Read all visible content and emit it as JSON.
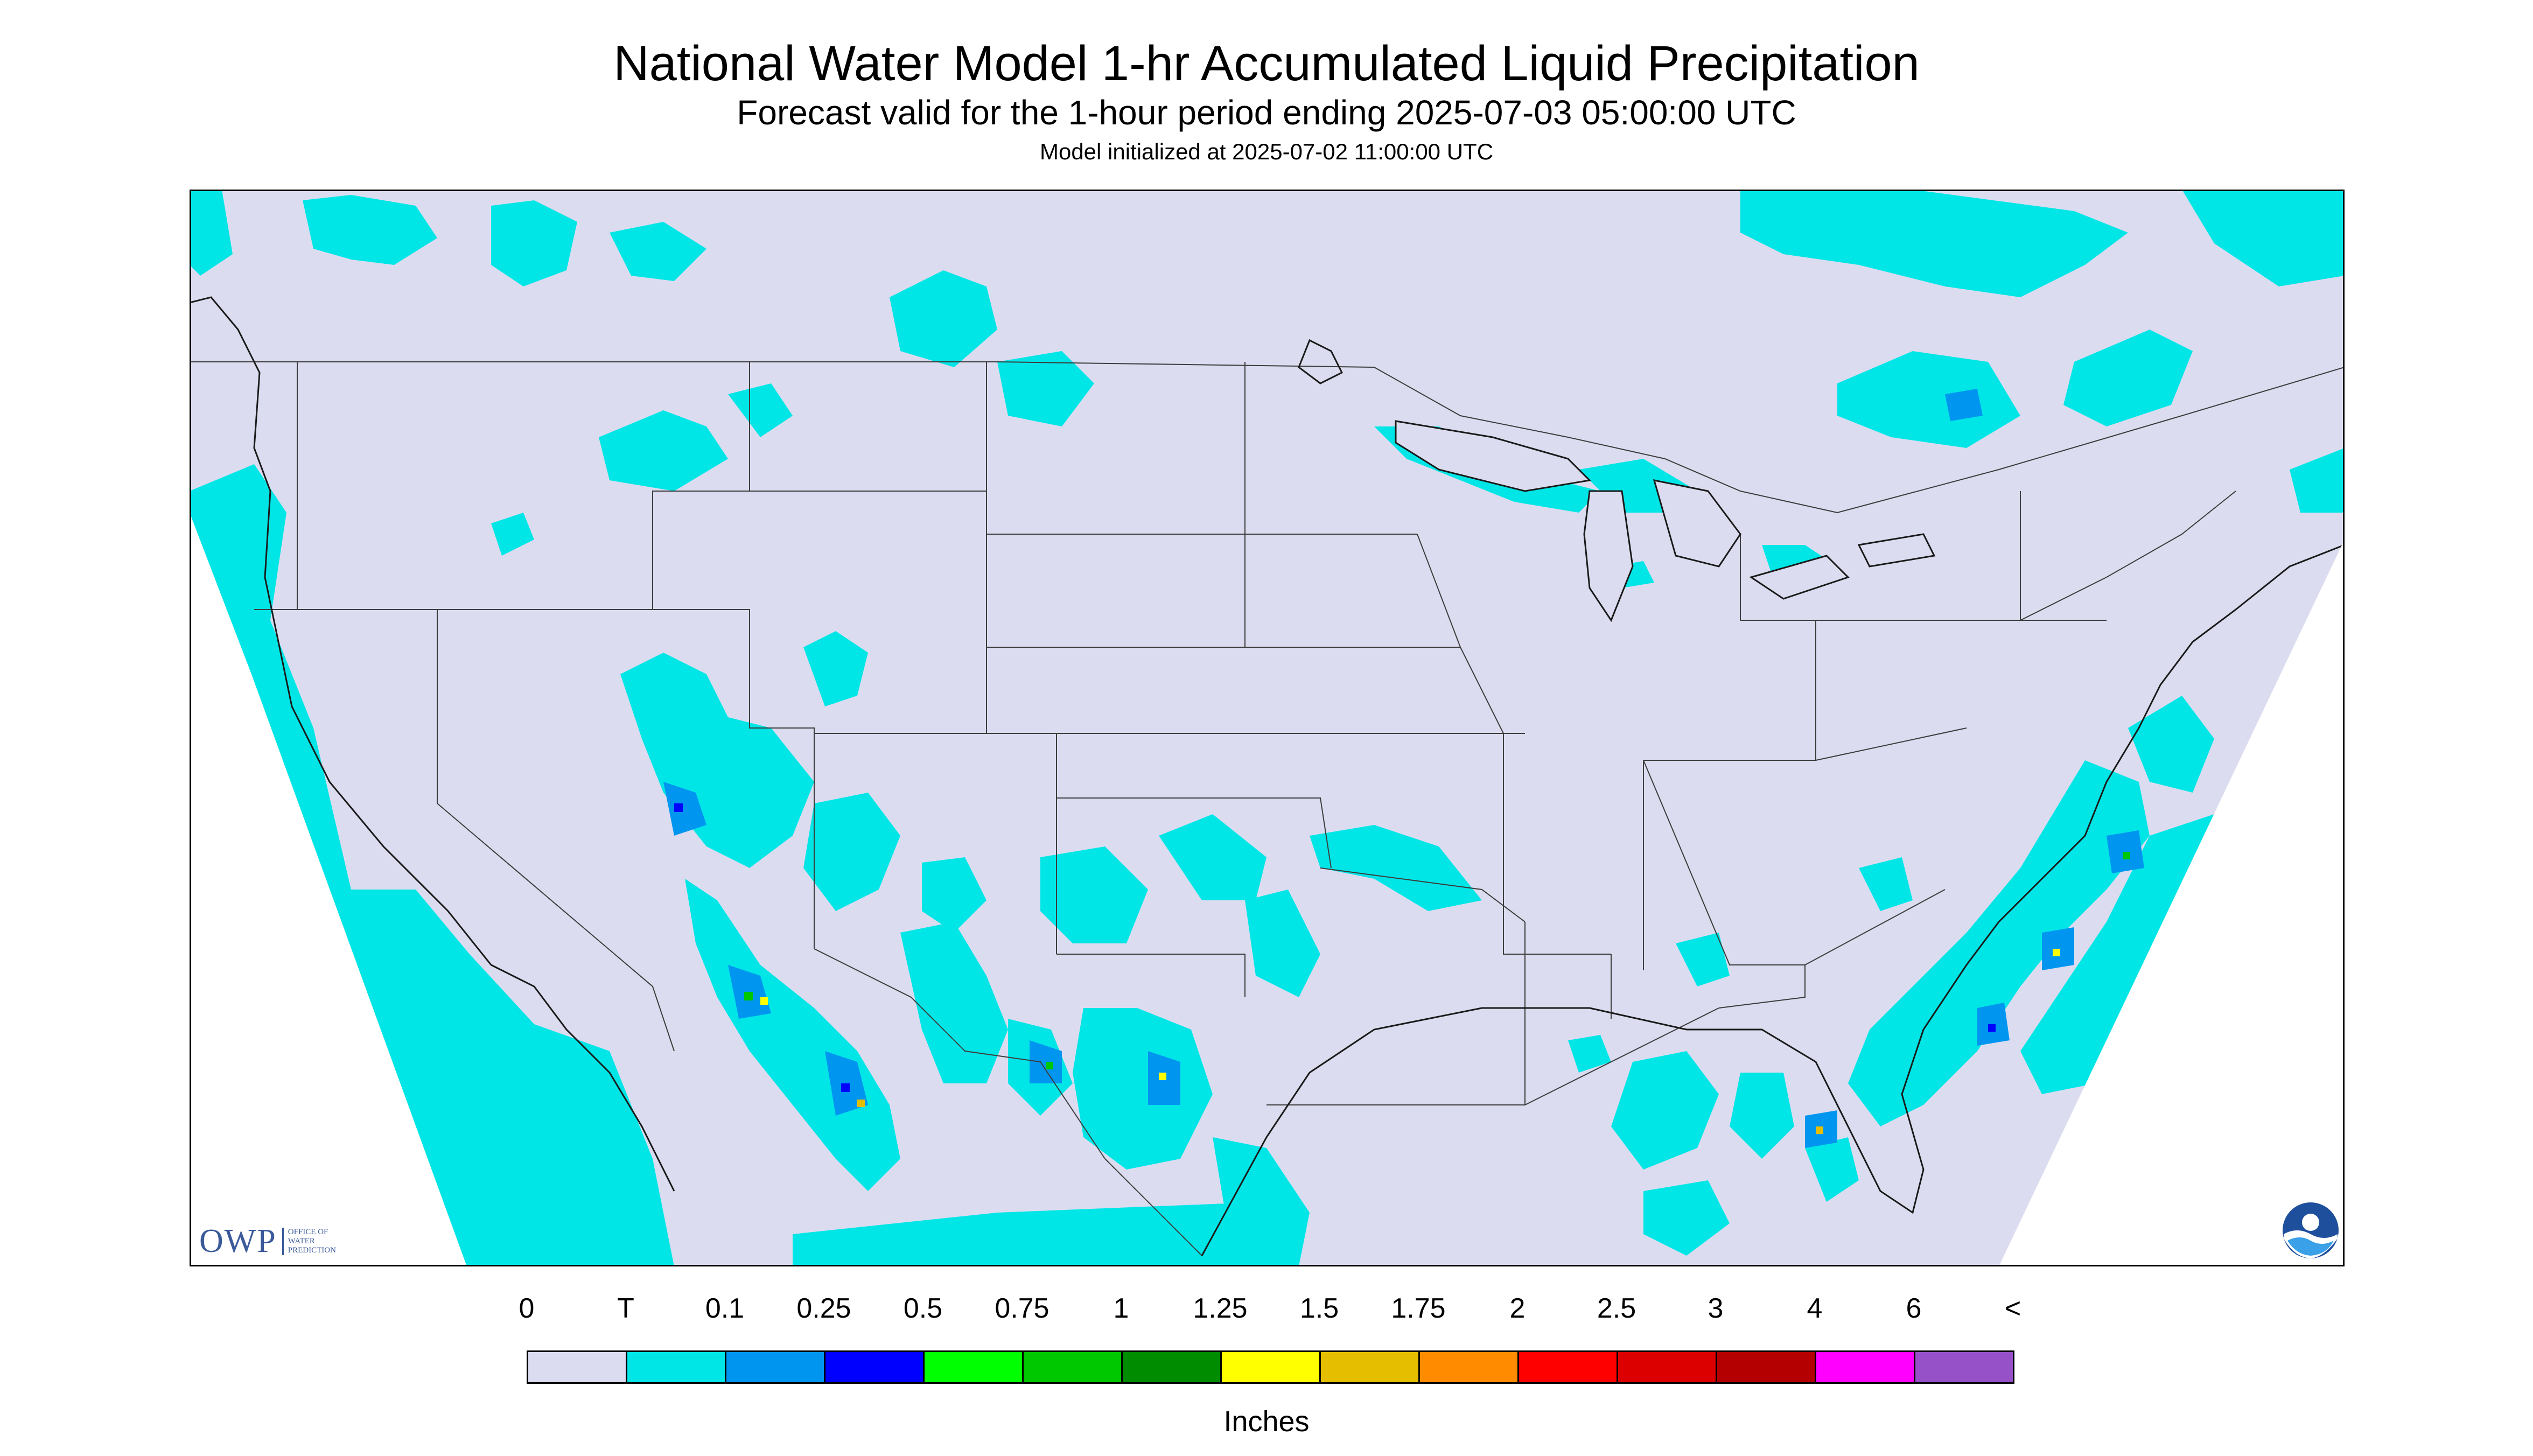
{
  "header": {
    "title": "National Water Model 1-hr Accumulated Liquid Precipitation",
    "subtitle": "Forecast valid for the 1-hour period ending 2025-07-03 05:00:00 UTC",
    "init": "Model initialized at 2025-07-02 11:00:00 UTC"
  },
  "colors": {
    "background": "#ffffff",
    "map_fill": "#dcdcf0",
    "boundary": "#3c3c3c",
    "trace": "#00e6e6"
  },
  "logos": {
    "owp_letters": "OWP",
    "owp_subtext": [
      "OFFICE OF",
      "WATER",
      "PREDICTION"
    ],
    "noaa_icon": "noaa-logo-icon"
  },
  "legend": {
    "labels": [
      "0",
      "T",
      "0.1",
      "0.25",
      "0.5",
      "0.75",
      "1",
      "1.25",
      "1.5",
      "1.75",
      "2",
      "2.5",
      "3",
      "4",
      "6",
      "<"
    ],
    "colors": [
      "#dcdcf0",
      "#00e6e6",
      "#0096f0",
      "#0000ff",
      "#00ff00",
      "#00c800",
      "#008c00",
      "#ffff00",
      "#e6be00",
      "#ff8c00",
      "#ff0000",
      "#dc0000",
      "#b40000",
      "#ff00ff",
      "#9650c8"
    ],
    "units": "Inches"
  }
}
